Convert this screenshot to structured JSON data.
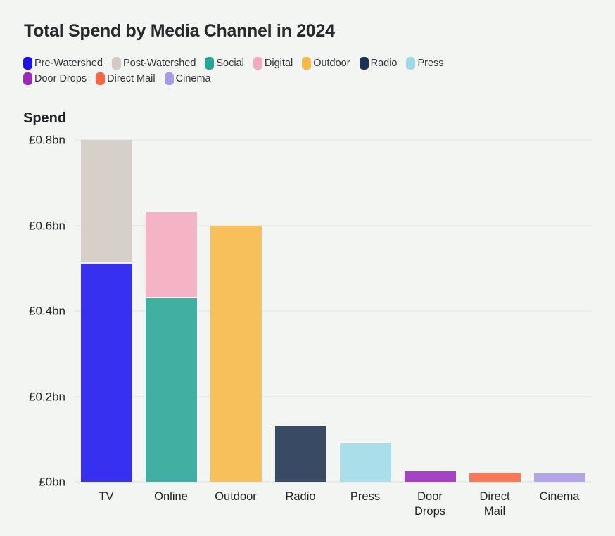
{
  "page": {
    "background": "#f3f5f2",
    "text_color": "#2b2c30",
    "grid_color": "#e9ebe6",
    "bar_opacity": 0.87
  },
  "title": "Total Spend by Media Channel in 2024",
  "legend_rows": [
    [
      "Pre-Watershed",
      "Post-Watershed",
      "Social",
      "Digital",
      "Outdoor",
      "Radio",
      "Press"
    ],
    [
      "Door Drops",
      "Direct Mail",
      "Cinema"
    ]
  ],
  "chart_data": {
    "type": "bar",
    "stacked": true,
    "grid": true,
    "legend_position": "top",
    "title": "Total Spend by Media Channel in 2024",
    "ylabel": "Spend",
    "value_unit": "£bn",
    "ylim": [
      0,
      0.8
    ],
    "yticks": [
      {
        "value": 0,
        "label": "£0bn"
      },
      {
        "value": 0.2,
        "label": "£0.2bn"
      },
      {
        "value": 0.4,
        "label": "£0.4bn"
      },
      {
        "value": 0.6,
        "label": "£0.6bn"
      },
      {
        "value": 0.8,
        "label": "£0.8bn"
      }
    ],
    "categories": [
      "TV",
      "Online",
      "Outdoor",
      "Radio",
      "Press",
      "Door Drops",
      "Direct Mail",
      "Cinema"
    ],
    "series": [
      {
        "name": "Pre-Watershed",
        "color": "#1c13f0"
      },
      {
        "name": "Post-Watershed",
        "color": "#d3cac3"
      },
      {
        "name": "Social",
        "color": "#26a595"
      },
      {
        "name": "Digital",
        "color": "#f5a9bf"
      },
      {
        "name": "Outdoor",
        "color": "#f8b845"
      },
      {
        "name": "Radio",
        "color": "#1d3150"
      },
      {
        "name": "Press",
        "color": "#9fdbe6"
      },
      {
        "name": "Door Drops",
        "color": "#9b27bd"
      },
      {
        "name": "Direct Mail",
        "color": "#f9663f"
      },
      {
        "name": "Cinema",
        "color": "#a89ae8"
      }
    ],
    "bars": [
      {
        "category": "TV",
        "segments": [
          {
            "series": "Pre-Watershed",
            "value": 0.51
          },
          {
            "series": "Post-Watershed",
            "value": 0.29
          }
        ],
        "total": 0.8
      },
      {
        "category": "Online",
        "segments": [
          {
            "series": "Social",
            "value": 0.43
          },
          {
            "series": "Digital",
            "value": 0.2
          }
        ],
        "total": 0.63
      },
      {
        "category": "Outdoor",
        "segments": [
          {
            "series": "Outdoor",
            "value": 0.6
          }
        ],
        "total": 0.6
      },
      {
        "category": "Radio",
        "segments": [
          {
            "series": "Radio",
            "value": 0.13
          }
        ],
        "total": 0.13
      },
      {
        "category": "Press",
        "segments": [
          {
            "series": "Press",
            "value": 0.09
          }
        ],
        "total": 0.09
      },
      {
        "category": "Door Drops",
        "segments": [
          {
            "series": "Door Drops",
            "value": 0.025
          }
        ],
        "total": 0.025
      },
      {
        "category": "Direct Mail",
        "segments": [
          {
            "series": "Direct Mail",
            "value": 0.021
          }
        ],
        "total": 0.021
      },
      {
        "category": "Cinema",
        "segments": [
          {
            "series": "Cinema",
            "value": 0.02
          }
        ],
        "total": 0.02
      }
    ]
  }
}
